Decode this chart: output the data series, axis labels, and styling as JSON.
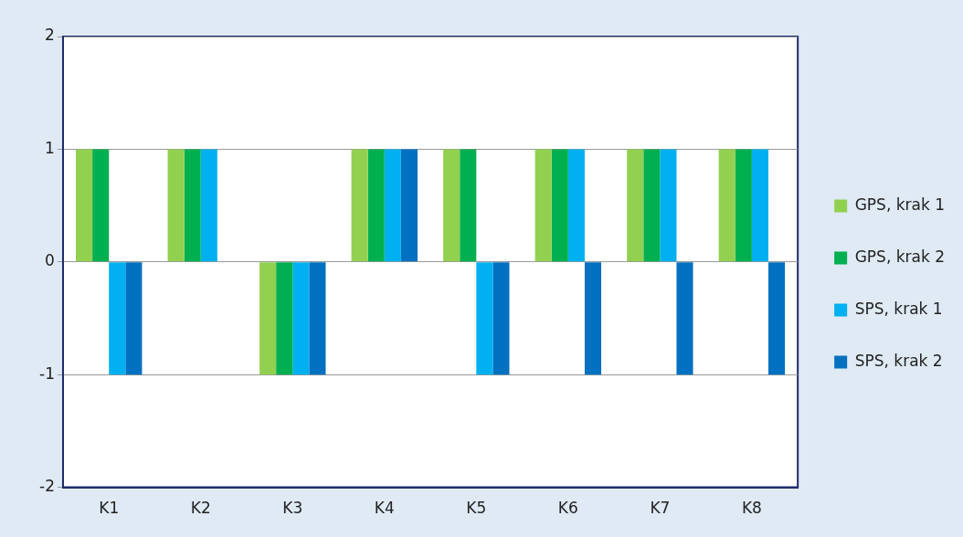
{
  "chart_data": {
    "type": "bar",
    "categories": [
      "K1",
      "K2",
      "K3",
      "K4",
      "K5",
      "K6",
      "K7",
      "K8"
    ],
    "series": [
      {
        "name": "GPS, krak 1",
        "color": "#92d050",
        "values": [
          1,
          1,
          -1,
          1,
          1,
          1,
          1,
          1
        ]
      },
      {
        "name": "GPS, krak 2",
        "color": "#00b050",
        "values": [
          1,
          1,
          -1,
          1,
          1,
          1,
          1,
          1
        ]
      },
      {
        "name": "SPS, krak 1",
        "color": "#00b0f0",
        "values": [
          -1,
          1,
          -1,
          1,
          -1,
          1,
          1,
          1
        ]
      },
      {
        "name": "SPS, krak 2",
        "color": "#0070c0",
        "values": [
          -1,
          0,
          -1,
          1,
          -1,
          -1,
          -1,
          -1
        ]
      }
    ],
    "ylim": [
      -2,
      2
    ],
    "yticks": [
      -2,
      -1,
      0,
      1,
      2
    ],
    "grid": "y",
    "legend": "right"
  }
}
